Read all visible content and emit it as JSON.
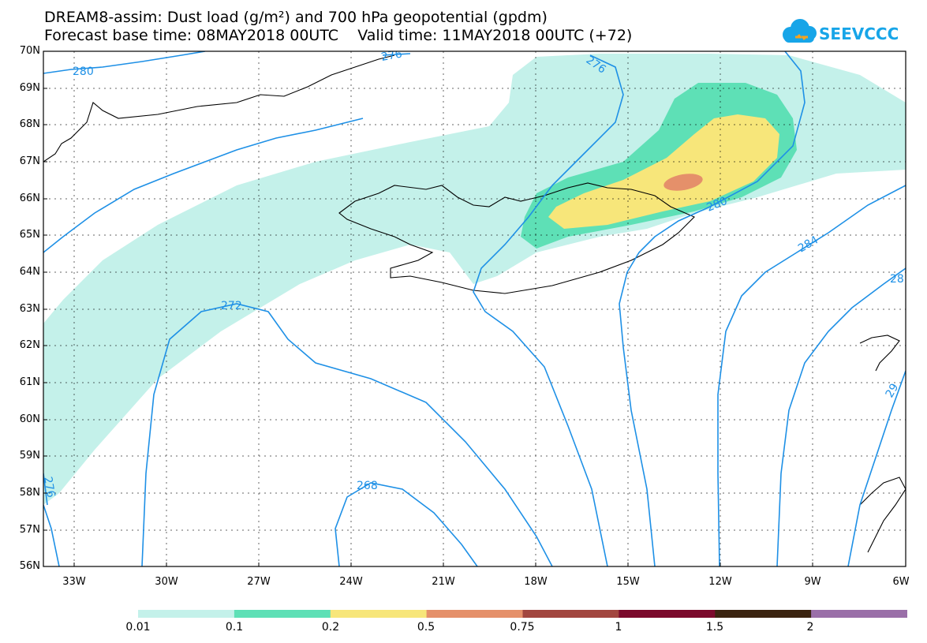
{
  "title_line1": "DREAM8-assim: Dust load (g/m²) and 700 hPa geopotential (gpdm)",
  "title_line2": "Forecast base time: 08MAY2018 00UTC    Valid time: 11MAY2018 00UTC (+72)",
  "logo_text": "SEEVCCC",
  "lat_labels": [
    "70N",
    "69N",
    "68N",
    "67N",
    "66N",
    "65N",
    "64N",
    "63N",
    "62N",
    "61N",
    "60N",
    "59N",
    "58N",
    "57N",
    "56N"
  ],
  "lon_labels": [
    "33W",
    "30W",
    "27W",
    "24W",
    "21W",
    "18W",
    "15W",
    "12W",
    "9W",
    "6W"
  ],
  "contour_labels": [
    "280",
    "276",
    "276",
    "280",
    "284",
    "28",
    "272",
    "268",
    "29",
    "276"
  ],
  "legend": {
    "labels": [
      "0.01",
      "0.1",
      "0.2",
      "0.5",
      "0.75",
      "1",
      "1.5",
      "2"
    ],
    "colors": [
      "#c4f1ea",
      "#5ee0b6",
      "#f7e67a",
      "#e5906a",
      "#a2463f",
      "#7b0a2c",
      "#3b2410",
      "#9a6fa8"
    ]
  },
  "colors": {
    "contour": "#1e90e6",
    "dust_light": "#c4f1ea",
    "dust_mid": "#5ee0b6",
    "dust_yellow": "#f7e67a",
    "dust_orange": "#e5906a",
    "coast": "#000000"
  }
}
